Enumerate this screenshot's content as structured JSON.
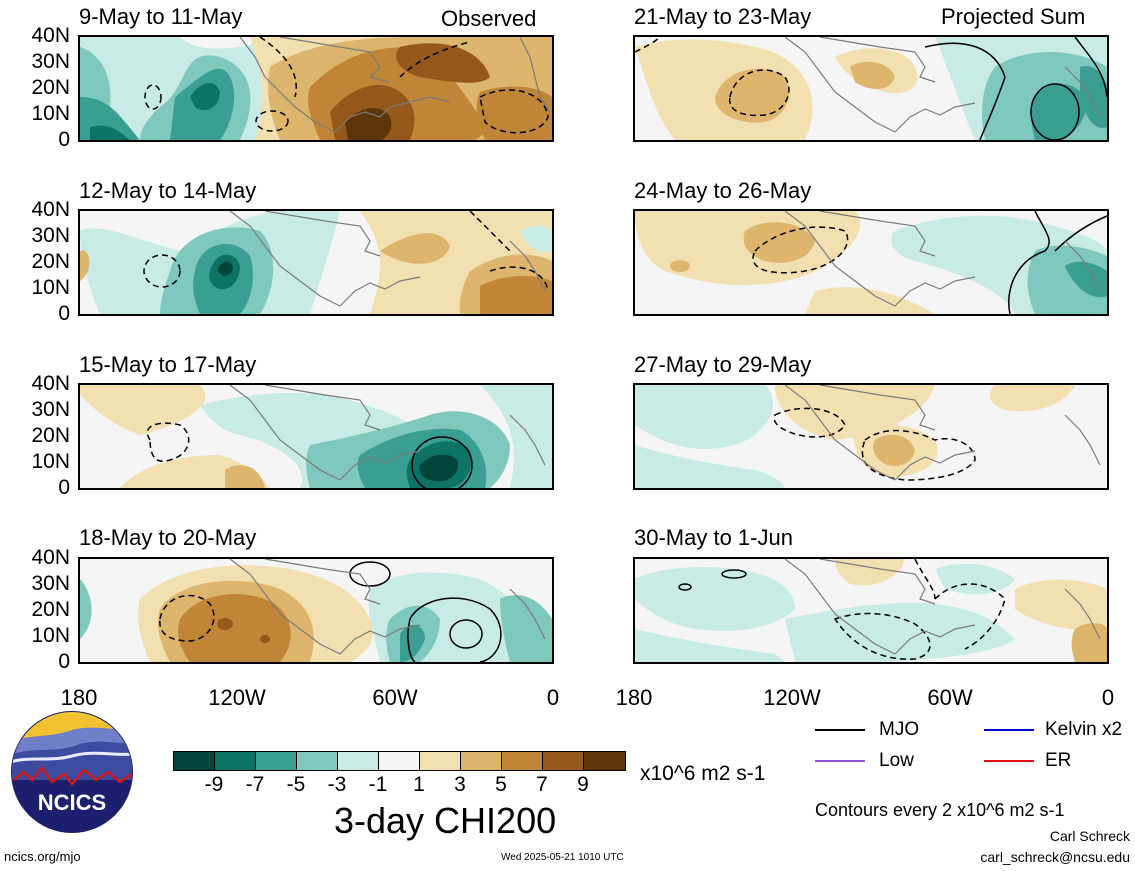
{
  "panels": {
    "left": [
      {
        "title": "9-May to 11-May",
        "tag": "Observed"
      },
      {
        "title": "12-May to 14-May",
        "tag": ""
      },
      {
        "title": "15-May to 17-May",
        "tag": ""
      },
      {
        "title": "18-May to 20-May",
        "tag": ""
      }
    ],
    "right": [
      {
        "title": "21-May to 23-May",
        "tag": "Projected Sum"
      },
      {
        "title": "24-May to 26-May",
        "tag": ""
      },
      {
        "title": "27-May to 29-May",
        "tag": ""
      },
      {
        "title": "30-May to 1-Jun",
        "tag": ""
      }
    ]
  },
  "lat_labels": [
    "40N",
    "30N",
    "20N",
    "10N",
    "0"
  ],
  "lon_labels": [
    "180",
    "120W",
    "60W",
    "0"
  ],
  "colorbar": {
    "ticks": [
      "-9",
      "-7",
      "-5",
      "-3",
      "-1",
      "1",
      "3",
      "5",
      "7",
      "9"
    ],
    "colors": [
      "#01463b",
      "#0c7366",
      "#3a9e93",
      "#7ec8bd",
      "#c8ebe5",
      "#f5f5f5",
      "#f2e0b0",
      "#ddb56c",
      "#c18538",
      "#95571a",
      "#5c3608"
    ],
    "units": "x10^6 m2 s-1",
    "title": "3-day CHI200"
  },
  "legend": {
    "items": [
      {
        "label": "MJO",
        "color": "#000000"
      },
      {
        "label": "Kelvin x2",
        "color": "#0000cc"
      },
      {
        "label": "Low",
        "color": "#9b4fd6"
      },
      {
        "label": "ER",
        "color": "#e01010"
      }
    ],
    "note": "Contours every 2 x10^6 m2 s-1"
  },
  "footer": {
    "logo_text": "NCICS",
    "site": "ncics.org/mjo",
    "timestamp": "Wed 2025-05-21 1010 UTC",
    "author": "Carl Schreck",
    "email": "carl_schreck@ncsu.edu"
  }
}
